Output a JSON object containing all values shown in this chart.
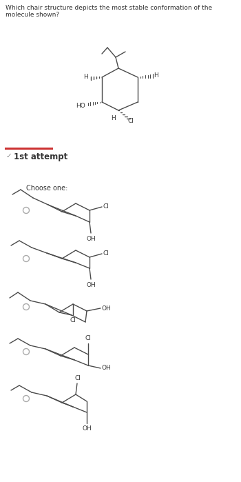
{
  "question": "Which chair structure depicts the most stable conformation of the molecule shown?",
  "attempt_label": "1st attempt",
  "choose_one": "Choose one:",
  "bg_color": "#ffffff",
  "text_color": "#333333",
  "line_color": "#4a4a4a",
  "radio_color": "#aaaaaa",
  "separator_color": "#cc3333",
  "check_color": "#888888",
  "font_size_question": 6.5,
  "font_size_label": 8.5,
  "font_size_atoms": 6.5,
  "font_size_choose": 7.0,
  "fig_width": 3.5,
  "fig_height": 6.99,
  "dpi": 100
}
